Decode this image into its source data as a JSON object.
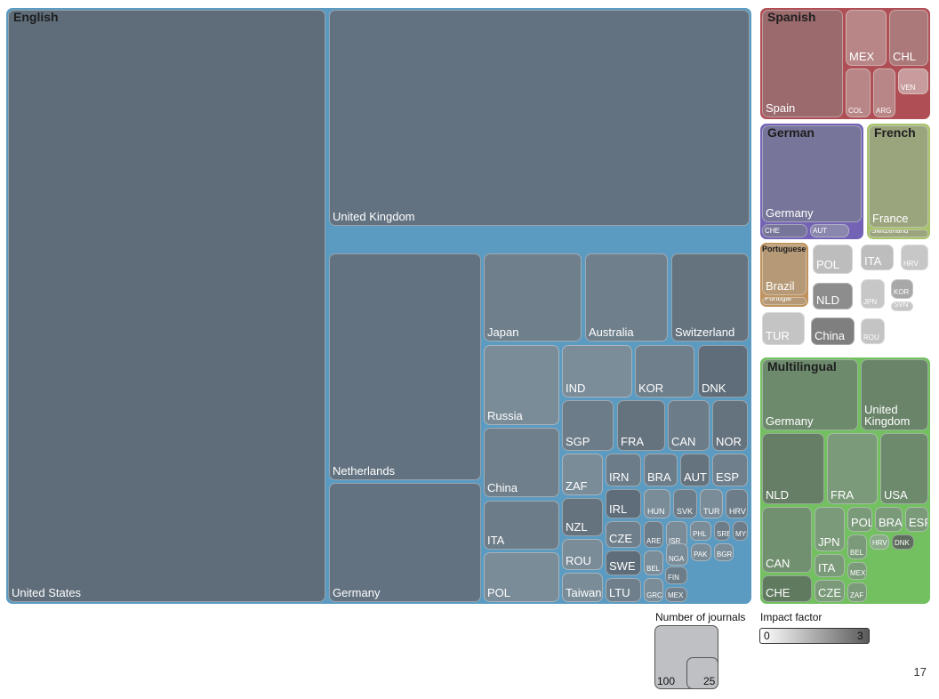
{
  "chart_data": {
    "type": "treemap",
    "groups": [
      {
        "name": "English",
        "color": "#5b9bc2",
        "children": [
          {
            "label": "United States"
          },
          {
            "label": "United Kingdom"
          },
          {
            "label": "Netherlands"
          },
          {
            "label": "Germany"
          },
          {
            "label": "Japan"
          },
          {
            "label": "Australia"
          },
          {
            "label": "Switzerland"
          },
          {
            "label": "Russia"
          },
          {
            "label": "China"
          },
          {
            "label": "ITA"
          },
          {
            "label": "POL"
          },
          {
            "label": "IND"
          },
          {
            "label": "KOR"
          },
          {
            "label": "DNK"
          },
          {
            "label": "SGP"
          },
          {
            "label": "FRA"
          },
          {
            "label": "CAN"
          },
          {
            "label": "NOR"
          },
          {
            "label": "ZAF"
          },
          {
            "label": "IRN"
          },
          {
            "label": "BRA"
          },
          {
            "label": "AUT"
          },
          {
            "label": "ESP"
          },
          {
            "label": "NZL"
          },
          {
            "label": "IRL"
          },
          {
            "label": "HUN"
          },
          {
            "label": "SVK"
          },
          {
            "label": "TUR"
          },
          {
            "label": "HRV"
          },
          {
            "label": "CZE"
          },
          {
            "label": "ARE"
          },
          {
            "label": "ISR"
          },
          {
            "label": "PHL"
          },
          {
            "label": "SRB"
          },
          {
            "label": "MYS"
          },
          {
            "label": "ROU"
          },
          {
            "label": "SWE"
          },
          {
            "label": "BEL"
          },
          {
            "label": "NGA"
          },
          {
            "label": "PAK"
          },
          {
            "label": "BGR"
          },
          {
            "label": "FIN"
          },
          {
            "label": "Taiwan"
          },
          {
            "label": "LTU"
          },
          {
            "label": "GRC"
          },
          {
            "label": "MEX"
          }
        ]
      },
      {
        "name": "Spanish",
        "color": "#b04e55",
        "children": [
          {
            "label": "Spain"
          },
          {
            "label": "MEX"
          },
          {
            "label": "CHL"
          },
          {
            "label": "COL"
          },
          {
            "label": "ARG"
          },
          {
            "label": "VEN"
          }
        ]
      },
      {
        "name": "German",
        "color": "#7463b4",
        "children": [
          {
            "label": "Germany"
          },
          {
            "label": "CHE"
          },
          {
            "label": "AUT"
          }
        ]
      },
      {
        "name": "French",
        "color": "#a9c36a",
        "children": [
          {
            "label": "France"
          },
          {
            "label": "Switzerland"
          }
        ]
      },
      {
        "name": "Portuguese",
        "color": "#c0925c",
        "children": [
          {
            "label": "Brazil"
          },
          {
            "label": "Portugal"
          }
        ]
      },
      {
        "name": "",
        "color": "#ffffff",
        "children": [
          {
            "label": "POL"
          },
          {
            "label": "ITA"
          },
          {
            "label": "HRV"
          },
          {
            "label": "NLD"
          },
          {
            "label": "JPN"
          },
          {
            "label": "KOR"
          },
          {
            "label": "SVN"
          },
          {
            "label": "TUR"
          },
          {
            "label": "China"
          },
          {
            "label": "ROU"
          }
        ]
      },
      {
        "name": "Multilingual",
        "color": "#72c05f",
        "children": [
          {
            "label": "Germany"
          },
          {
            "label": "United Kingdom"
          },
          {
            "label": "NLD"
          },
          {
            "label": "FRA"
          },
          {
            "label": "USA"
          },
          {
            "label": "CAN"
          },
          {
            "label": "JPN"
          },
          {
            "label": "POL"
          },
          {
            "label": "BRA"
          },
          {
            "label": "ESP"
          },
          {
            "label": "BEL"
          },
          {
            "label": "HRV"
          },
          {
            "label": "DNK"
          },
          {
            "label": "ITA"
          },
          {
            "label": "MEX"
          },
          {
            "label": "CHE"
          },
          {
            "label": "CZE"
          },
          {
            "label": "ZAF"
          }
        ]
      }
    ],
    "legend": {
      "size_title": "Number of journals",
      "size_values": [
        "100",
        "25"
      ],
      "color_title": "Impact factor",
      "color_min": "0",
      "color_max": "3"
    }
  },
  "page_number": "17"
}
